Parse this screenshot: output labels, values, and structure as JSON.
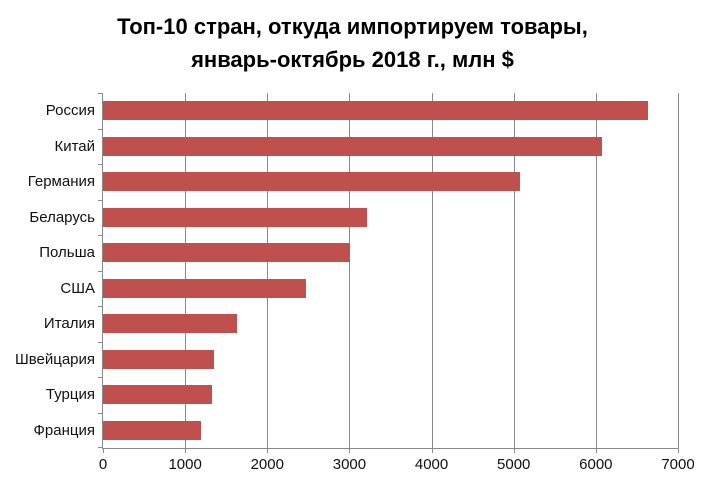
{
  "title": {
    "line1": "Топ-10 стран, откуда импортируем товары,",
    "line2": "январь-октябрь 2018 г., млн $"
  },
  "chart_data": {
    "type": "bar",
    "orientation": "horizontal",
    "title": "Топ-10 стран, откуда импортируем товары, январь-октябрь 2018 г., млн $",
    "categories": [
      "Россия",
      "Китай",
      "Германия",
      "Беларусь",
      "Польша",
      "США",
      "Италия",
      "Швейцария",
      "Турция",
      "Франция"
    ],
    "values": [
      6630,
      6080,
      5080,
      3210,
      3010,
      2470,
      1630,
      1350,
      1330,
      1190
    ],
    "xlabel": "",
    "ylabel": "",
    "xlim": [
      0,
      7000
    ],
    "xticks": [
      0,
      1000,
      2000,
      3000,
      4000,
      5000,
      6000,
      7000
    ],
    "grid": true,
    "legend": false,
    "bar_color": "#c0504d",
    "gridline_color": "#8a8a8a",
    "axis_color": "#8a8a8a",
    "text_color": "#111111",
    "background": "#ffffff"
  }
}
